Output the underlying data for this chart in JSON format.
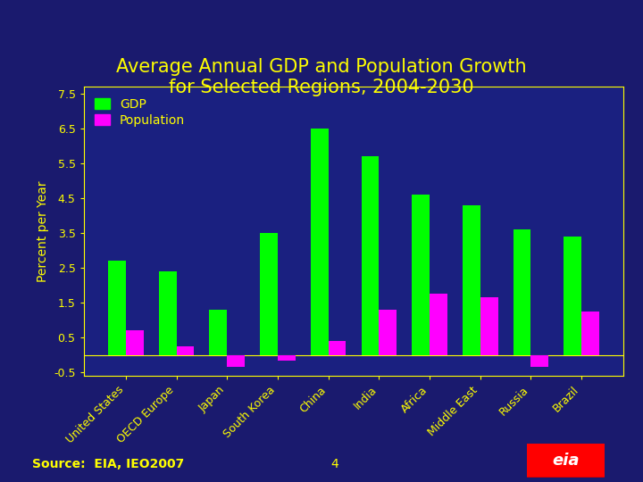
{
  "title": "Average Annual GDP and Population Growth\nfor Selected Regions, 2004-2030",
  "ylabel": "Percent per Year",
  "source": "Source:  EIA, IEO2007",
  "categories": [
    "United States",
    "OECD Europe",
    "Japan",
    "South Korea",
    "China",
    "India",
    "Africa",
    "Middle East",
    "Russia",
    "Brazil"
  ],
  "gdp_values": [
    2.7,
    2.4,
    1.3,
    3.5,
    6.5,
    5.7,
    4.6,
    4.3,
    3.6,
    3.4
  ],
  "pop_values": [
    0.7,
    0.25,
    -0.35,
    -0.15,
    0.4,
    1.3,
    1.75,
    1.65,
    -0.35,
    1.25
  ],
  "gdp_color": "#00FF00",
  "pop_color": "#FF00FF",
  "background_color": "#1a1a6e",
  "plot_bg_color": "#1a2080",
  "title_color": "#FFFF00",
  "tick_color": "#FFFF00",
  "label_color": "#FFFF00",
  "axis_color": "#FFFF00",
  "legend_gdp": "GDP",
  "legend_pop": "Population",
  "ylim": [
    -0.6,
    7.7
  ],
  "yticks": [
    7.5,
    6.5,
    5.5,
    4.5,
    3.5,
    2.5,
    1.5,
    0.5,
    -0.5
  ],
  "ytick_labels": [
    "7.5",
    "6.5",
    "5.5",
    "4.5",
    "3.5",
    "2.5",
    "1.5",
    "0.5",
    "-0.5"
  ],
  "bar_width": 0.35,
  "title_fontsize": 15,
  "label_fontsize": 10,
  "tick_fontsize": 9,
  "source_fontsize": 10,
  "legend_fontsize": 10
}
